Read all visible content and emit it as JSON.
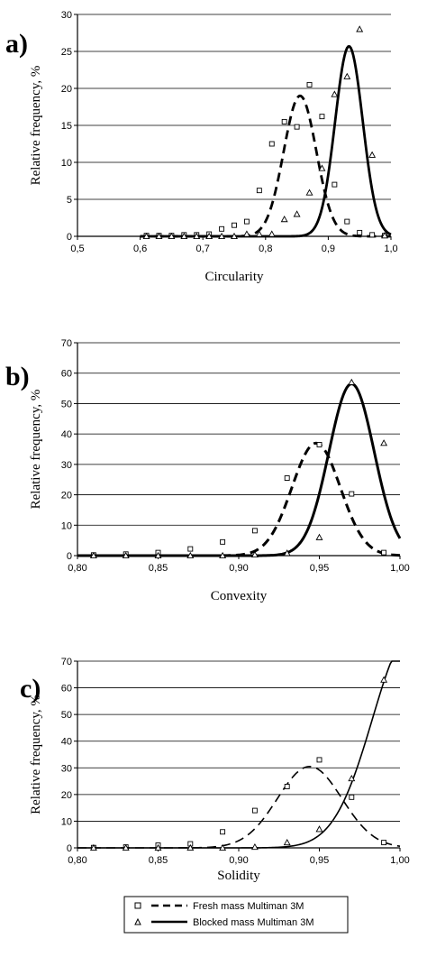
{
  "legend": {
    "entries": [
      {
        "label": "Fresh mass Multiman 3M",
        "marker": "square",
        "line": "dashed"
      },
      {
        "label": "Blocked mass Multiman 3M",
        "marker": "triangle",
        "line": "solid"
      }
    ]
  },
  "chart_data": [
    {
      "type": "scatter",
      "panel_label": "a)",
      "xlabel": "Circularity",
      "ylabel": "Relative frequency, %",
      "xlim": [
        0.5,
        1.0
      ],
      "ylim": [
        0,
        30
      ],
      "xticks": [
        0.5,
        0.6,
        0.7,
        0.8,
        0.9,
        1.0
      ],
      "xtick_labels": [
        "0,5",
        "0,6",
        "0,7",
        "0,8",
        "0,9",
        "1,0"
      ],
      "yticks": [
        0,
        5,
        10,
        15,
        20,
        25,
        30
      ],
      "ytick_labels": [
        "0",
        "5",
        "10",
        "15",
        "20",
        "25",
        "30"
      ],
      "grid": "horizontal",
      "series": [
        {
          "marker": "square",
          "line": "dashed",
          "fit": {
            "mu": 0.855,
            "sigma": 0.026,
            "amp": 19
          },
          "x": [
            0.61,
            0.63,
            0.65,
            0.67,
            0.69,
            0.71,
            0.73,
            0.75,
            0.77,
            0.79,
            0.81,
            0.83,
            0.85,
            0.87,
            0.89,
            0.91,
            0.93,
            0.95,
            0.97,
            0.99
          ],
          "y": [
            0.1,
            0.1,
            0.1,
            0.2,
            0.2,
            0.3,
            1.0,
            1.5,
            2.0,
            6.2,
            12.5,
            15.5,
            14.8,
            20.5,
            16.2,
            7.0,
            2.0,
            0.5,
            0.2,
            0.1
          ]
        },
        {
          "marker": "triangle",
          "line": "solid",
          "fit": {
            "mu": 0.933,
            "sigma": 0.022,
            "amp": 25.7
          },
          "x": [
            0.61,
            0.63,
            0.65,
            0.67,
            0.69,
            0.71,
            0.73,
            0.75,
            0.77,
            0.79,
            0.81,
            0.83,
            0.85,
            0.87,
            0.89,
            0.91,
            0.93,
            0.95,
            0.97,
            0.99
          ],
          "y": [
            0,
            0,
            0,
            0,
            0,
            0,
            0,
            0,
            0.3,
            0.3,
            0.3,
            2.3,
            3.0,
            5.9,
            9.2,
            19.2,
            21.6,
            28.0,
            11.0,
            0.1
          ]
        }
      ]
    },
    {
      "type": "scatter",
      "panel_label": "b)",
      "xlabel": "Convexity",
      "ylabel": "Relative frequency, %",
      "xlim": [
        0.8,
        1.0
      ],
      "ylim": [
        0,
        70
      ],
      "xticks": [
        0.8,
        0.85,
        0.9,
        0.95,
        1.0
      ],
      "xtick_labels": [
        "0,80",
        "0,85",
        "0,90",
        "0,95",
        "1,00"
      ],
      "yticks": [
        0,
        10,
        20,
        30,
        40,
        50,
        60,
        70
      ],
      "ytick_labels": [
        "0",
        "10",
        "20",
        "30",
        "40",
        "50",
        "60",
        "70"
      ],
      "grid": "horizontal",
      "series": [
        {
          "marker": "square",
          "line": "dashed",
          "fit": {
            "mu": 0.948,
            "sigma": 0.015,
            "amp": 37
          },
          "x": [
            0.81,
            0.83,
            0.85,
            0.87,
            0.89,
            0.91,
            0.93,
            0.95,
            0.97,
            0.99
          ],
          "y": [
            0.2,
            0.5,
            1.0,
            2.2,
            4.5,
            8.2,
            25.5,
            36.5,
            20.3,
            1.0
          ]
        },
        {
          "marker": "triangle",
          "line": "solid",
          "fit": {
            "mu": 0.97,
            "sigma": 0.014,
            "amp": 56.5
          },
          "x": [
            0.81,
            0.83,
            0.85,
            0.87,
            0.89,
            0.91,
            0.93,
            0.95,
            0.97,
            0.99
          ],
          "y": [
            0,
            0,
            0,
            0,
            0,
            0.3,
            0.8,
            6.0,
            57.0,
            37.0
          ]
        }
      ]
    },
    {
      "type": "scatter",
      "panel_label": "c)",
      "xlabel": "Solidity",
      "ylabel": "Relative frequency, %",
      "xlim": [
        0.8,
        1.0
      ],
      "ylim": [
        0,
        70
      ],
      "xticks": [
        0.8,
        0.85,
        0.9,
        0.95,
        1.0
      ],
      "xtick_labels": [
        "0,80",
        "0,85",
        "0,90",
        "0,95",
        "1,00"
      ],
      "yticks": [
        0,
        10,
        20,
        30,
        40,
        50,
        60,
        70
      ],
      "ytick_labels": [
        "0",
        "10",
        "20",
        "30",
        "40",
        "50",
        "60",
        "70"
      ],
      "grid": "horizontal",
      "series": [
        {
          "marker": "square",
          "line": "dashed",
          "fit": {
            "mu": 0.944,
            "sigma": 0.02,
            "amp": 30.5
          },
          "x": [
            0.81,
            0.83,
            0.85,
            0.87,
            0.89,
            0.91,
            0.93,
            0.95,
            0.97,
            0.99
          ],
          "y": [
            0.1,
            0.3,
            1.0,
            1.5,
            6.0,
            14.0,
            23.0,
            33.0,
            19.0,
            2.0
          ]
        },
        {
          "marker": "triangle",
          "line": "solid",
          "fit": {
            "mu": 1.007,
            "sigma": 0.024,
            "amp": 80
          },
          "x": [
            0.81,
            0.83,
            0.85,
            0.87,
            0.89,
            0.91,
            0.93,
            0.95,
            0.97,
            0.99
          ],
          "y": [
            0,
            0,
            0,
            0,
            0,
            0.3,
            2.0,
            7.0,
            26.0,
            63.0
          ]
        }
      ]
    }
  ]
}
